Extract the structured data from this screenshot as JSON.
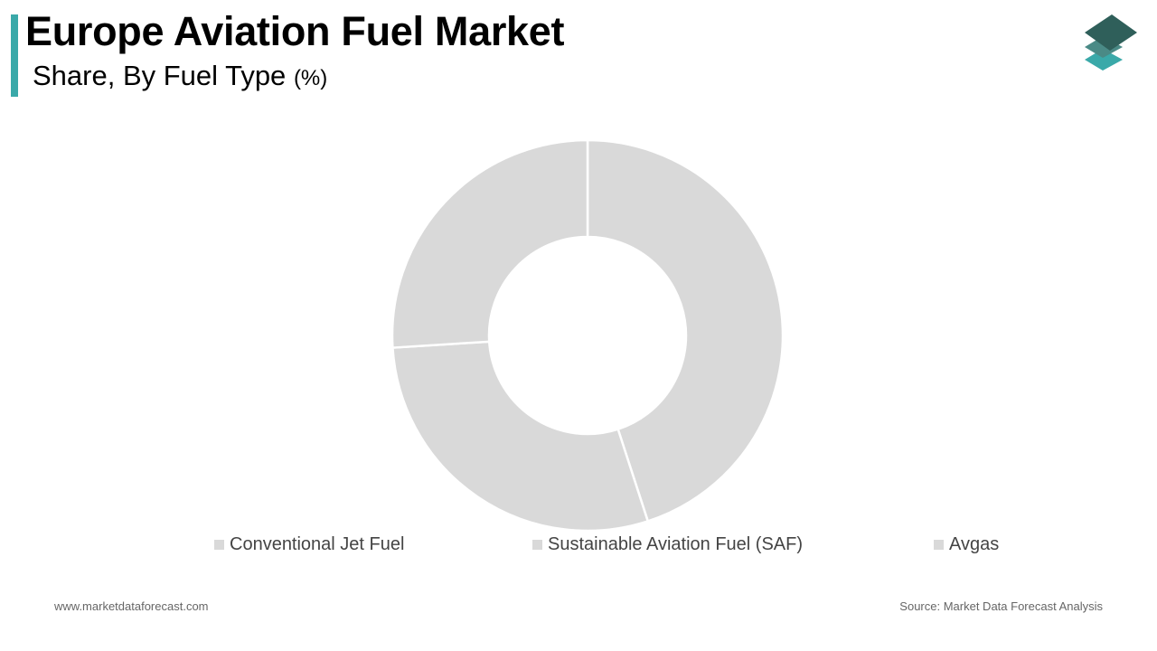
{
  "header": {
    "title": "Europe Aviation Fuel Market",
    "subtitle": "Share, By Fuel Type",
    "subtitle_unit": "(%)"
  },
  "logo": {
    "icon": "stacked-layers-icon",
    "colors": [
      "#2f5f5a",
      "#4a8a86",
      "#3aa9a9"
    ]
  },
  "colors": {
    "accent": "#3aa9a9",
    "slice": "#d9d9d9",
    "separator": "#ffffff"
  },
  "chart_data": {
    "type": "pie",
    "variant": "donut",
    "title": "Europe Aviation Fuel Market",
    "subtitle": "Share, By Fuel Type (%)",
    "categories": [
      "Conventional Jet Fuel",
      "Sustainable Aviation Fuel (SAF)",
      "Avgas"
    ],
    "values": [
      45,
      29,
      26
    ],
    "colors": [
      "#d9d9d9",
      "#d9d9d9",
      "#d9d9d9"
    ],
    "legend": "bottom",
    "grid": false
  },
  "footer": {
    "website": "www.marketdataforecast.com",
    "source": "Source: Market Data Forecast Analysis"
  }
}
